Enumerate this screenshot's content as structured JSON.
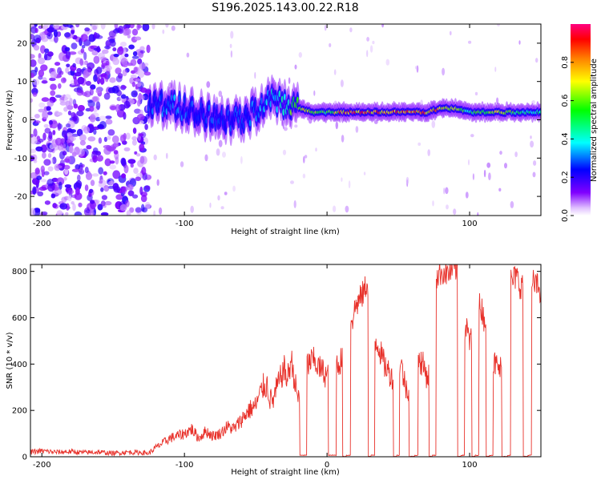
{
  "title": "S196.2025.143.00.22.R18",
  "chart_data": [
    {
      "type": "heatmap",
      "xlabel": "Height of straight line (km)",
      "ylabel": "Frequency (Hz)",
      "xlim": [
        -208,
        150
      ],
      "ylim": [
        -25,
        25
      ],
      "xticks": [
        -200,
        -100,
        0,
        100
      ],
      "xticks_labeled": [
        "-200",
        "-100",
        "100"
      ],
      "yticks": [
        -20,
        -10,
        0,
        10,
        20
      ],
      "yticks_labels": [
        "-20",
        "-10",
        "0",
        "10",
        "20"
      ],
      "colorbar": {
        "label": "Normalized spectral amplitude",
        "range": [
          0,
          1
        ],
        "ticks": [
          "0.0",
          "0.2",
          "0.4",
          "0.6",
          "0.8"
        ],
        "colors": [
          "#ffffff",
          "#8000ff",
          "#0000ff",
          "#00ffff",
          "#00ff00",
          "#ffff00",
          "#ff8000",
          "#ff0000",
          "#ff0080"
        ]
      },
      "noise_region": {
        "x": [
          -208,
          -125
        ],
        "y": [
          -25,
          25
        ],
        "amplitude": 0.2
      },
      "ridge": {
        "x": [
          -125,
          -110,
          -95,
          -80,
          -65,
          -50,
          -40,
          -30,
          -20,
          -10,
          0,
          10,
          20,
          30,
          40,
          50,
          60,
          70,
          80,
          90,
          100,
          110,
          120,
          130,
          140,
          150
        ],
        "freq": [
          4,
          4,
          2,
          1,
          0,
          2,
          5,
          4,
          3,
          2,
          2,
          2,
          2,
          2,
          2,
          2,
          2,
          2,
          3,
          3,
          2,
          2,
          2,
          2,
          2,
          2
        ],
        "amplitude": [
          0.3,
          0.35,
          0.3,
          0.3,
          0.3,
          0.35,
          0.4,
          0.45,
          0.8,
          0.7,
          0.6,
          0.9,
          0.95,
          0.9,
          0.9,
          0.95,
          0.9,
          0.9,
          0.85,
          0.7,
          0.5,
          0.7,
          0.75,
          0.6,
          0.5,
          0.5
        ]
      }
    },
    {
      "type": "line",
      "xlabel": "Height of straight line (km)",
      "ylabel": "SNR (10 * v/v)",
      "xlim": [
        -208,
        150
      ],
      "ylim": [
        0,
        830
      ],
      "xticks": [
        -200,
        -100,
        0,
        100
      ],
      "xticks_labels": [
        "-200",
        "-100",
        "0",
        "100"
      ],
      "yticks": [
        0,
        200,
        400,
        600,
        800
      ],
      "yticks_labels": [
        "0",
        "200",
        "400",
        "600",
        "800"
      ],
      "series": [
        {
          "color": "#e8312a",
          "x": [
            -208,
            -200,
            -190,
            -180,
            -170,
            -160,
            -150,
            -140,
            -130,
            -125,
            -120,
            -115,
            -110,
            -105,
            -100,
            -95,
            -90,
            -85,
            -80,
            -75,
            -70,
            -65,
            -60,
            -55,
            -50,
            -45,
            -42,
            -40,
            -38,
            -35,
            -30,
            -28,
            -25,
            -22,
            -20,
            -18,
            -15,
            -13,
            -10,
            -5,
            0,
            2,
            5,
            8,
            10,
            12,
            15,
            18,
            20,
            25,
            28,
            30,
            32,
            35,
            40,
            45,
            48,
            50,
            52,
            55,
            60,
            63,
            65,
            67,
            70,
            73,
            75,
            78,
            80,
            85,
            90,
            93,
            95,
            98,
            100,
            103,
            105,
            108,
            110,
            113,
            115,
            118,
            120,
            125,
            128,
            130,
            133,
            135,
            140,
            142,
            145,
            150
          ],
          "y": [
            20,
            25,
            20,
            22,
            18,
            20,
            15,
            20,
            18,
            15,
            40,
            60,
            80,
            90,
            100,
            120,
            80,
            110,
            90,
            100,
            130,
            120,
            160,
            200,
            220,
            300,
            310,
            250,
            240,
            300,
            380,
            330,
            420,
            300,
            250,
            5,
            5,
            400,
            420,
            380,
            350,
            5,
            5,
            400,
            420,
            0,
            5,
            600,
            650,
            700,
            750,
            0,
            5,
            500,
            400,
            350,
            0,
            5,
            400,
            300,
            0,
            5,
            420,
            400,
            350,
            0,
            5,
            780,
            800,
            790,
            810,
            0,
            5,
            550,
            500,
            0,
            5,
            650,
            600,
            0,
            5,
            400,
            380,
            0,
            5,
            760,
            780,
            740,
            0,
            5,
            750,
            720
          ]
        }
      ]
    }
  ]
}
